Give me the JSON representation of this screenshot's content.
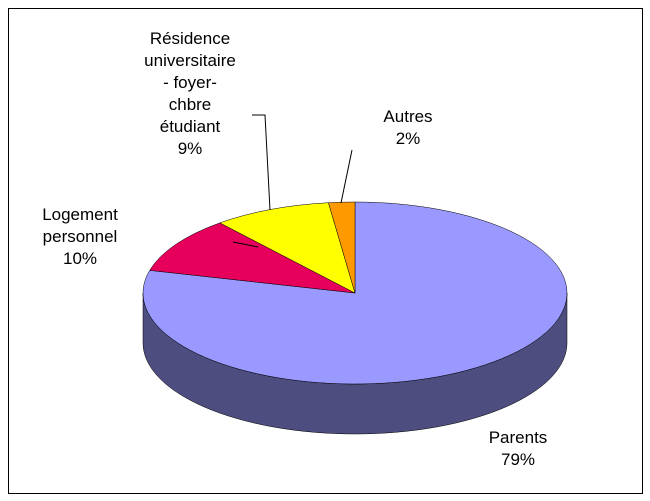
{
  "chart_data": {
    "type": "pie3d",
    "categories": [
      "Parents",
      "Logement\npersonnel",
      "Résidence\nuniversitaire\n- foyer-\nchbre\nétudiant",
      "Autres"
    ],
    "values": [
      79,
      10,
      9,
      2
    ],
    "value_labels": [
      "79%",
      "10%",
      "9%",
      "2%"
    ],
    "colors": [
      "#9999ff",
      "#e6005c",
      "#ffff00",
      "#ff9900"
    ]
  }
}
